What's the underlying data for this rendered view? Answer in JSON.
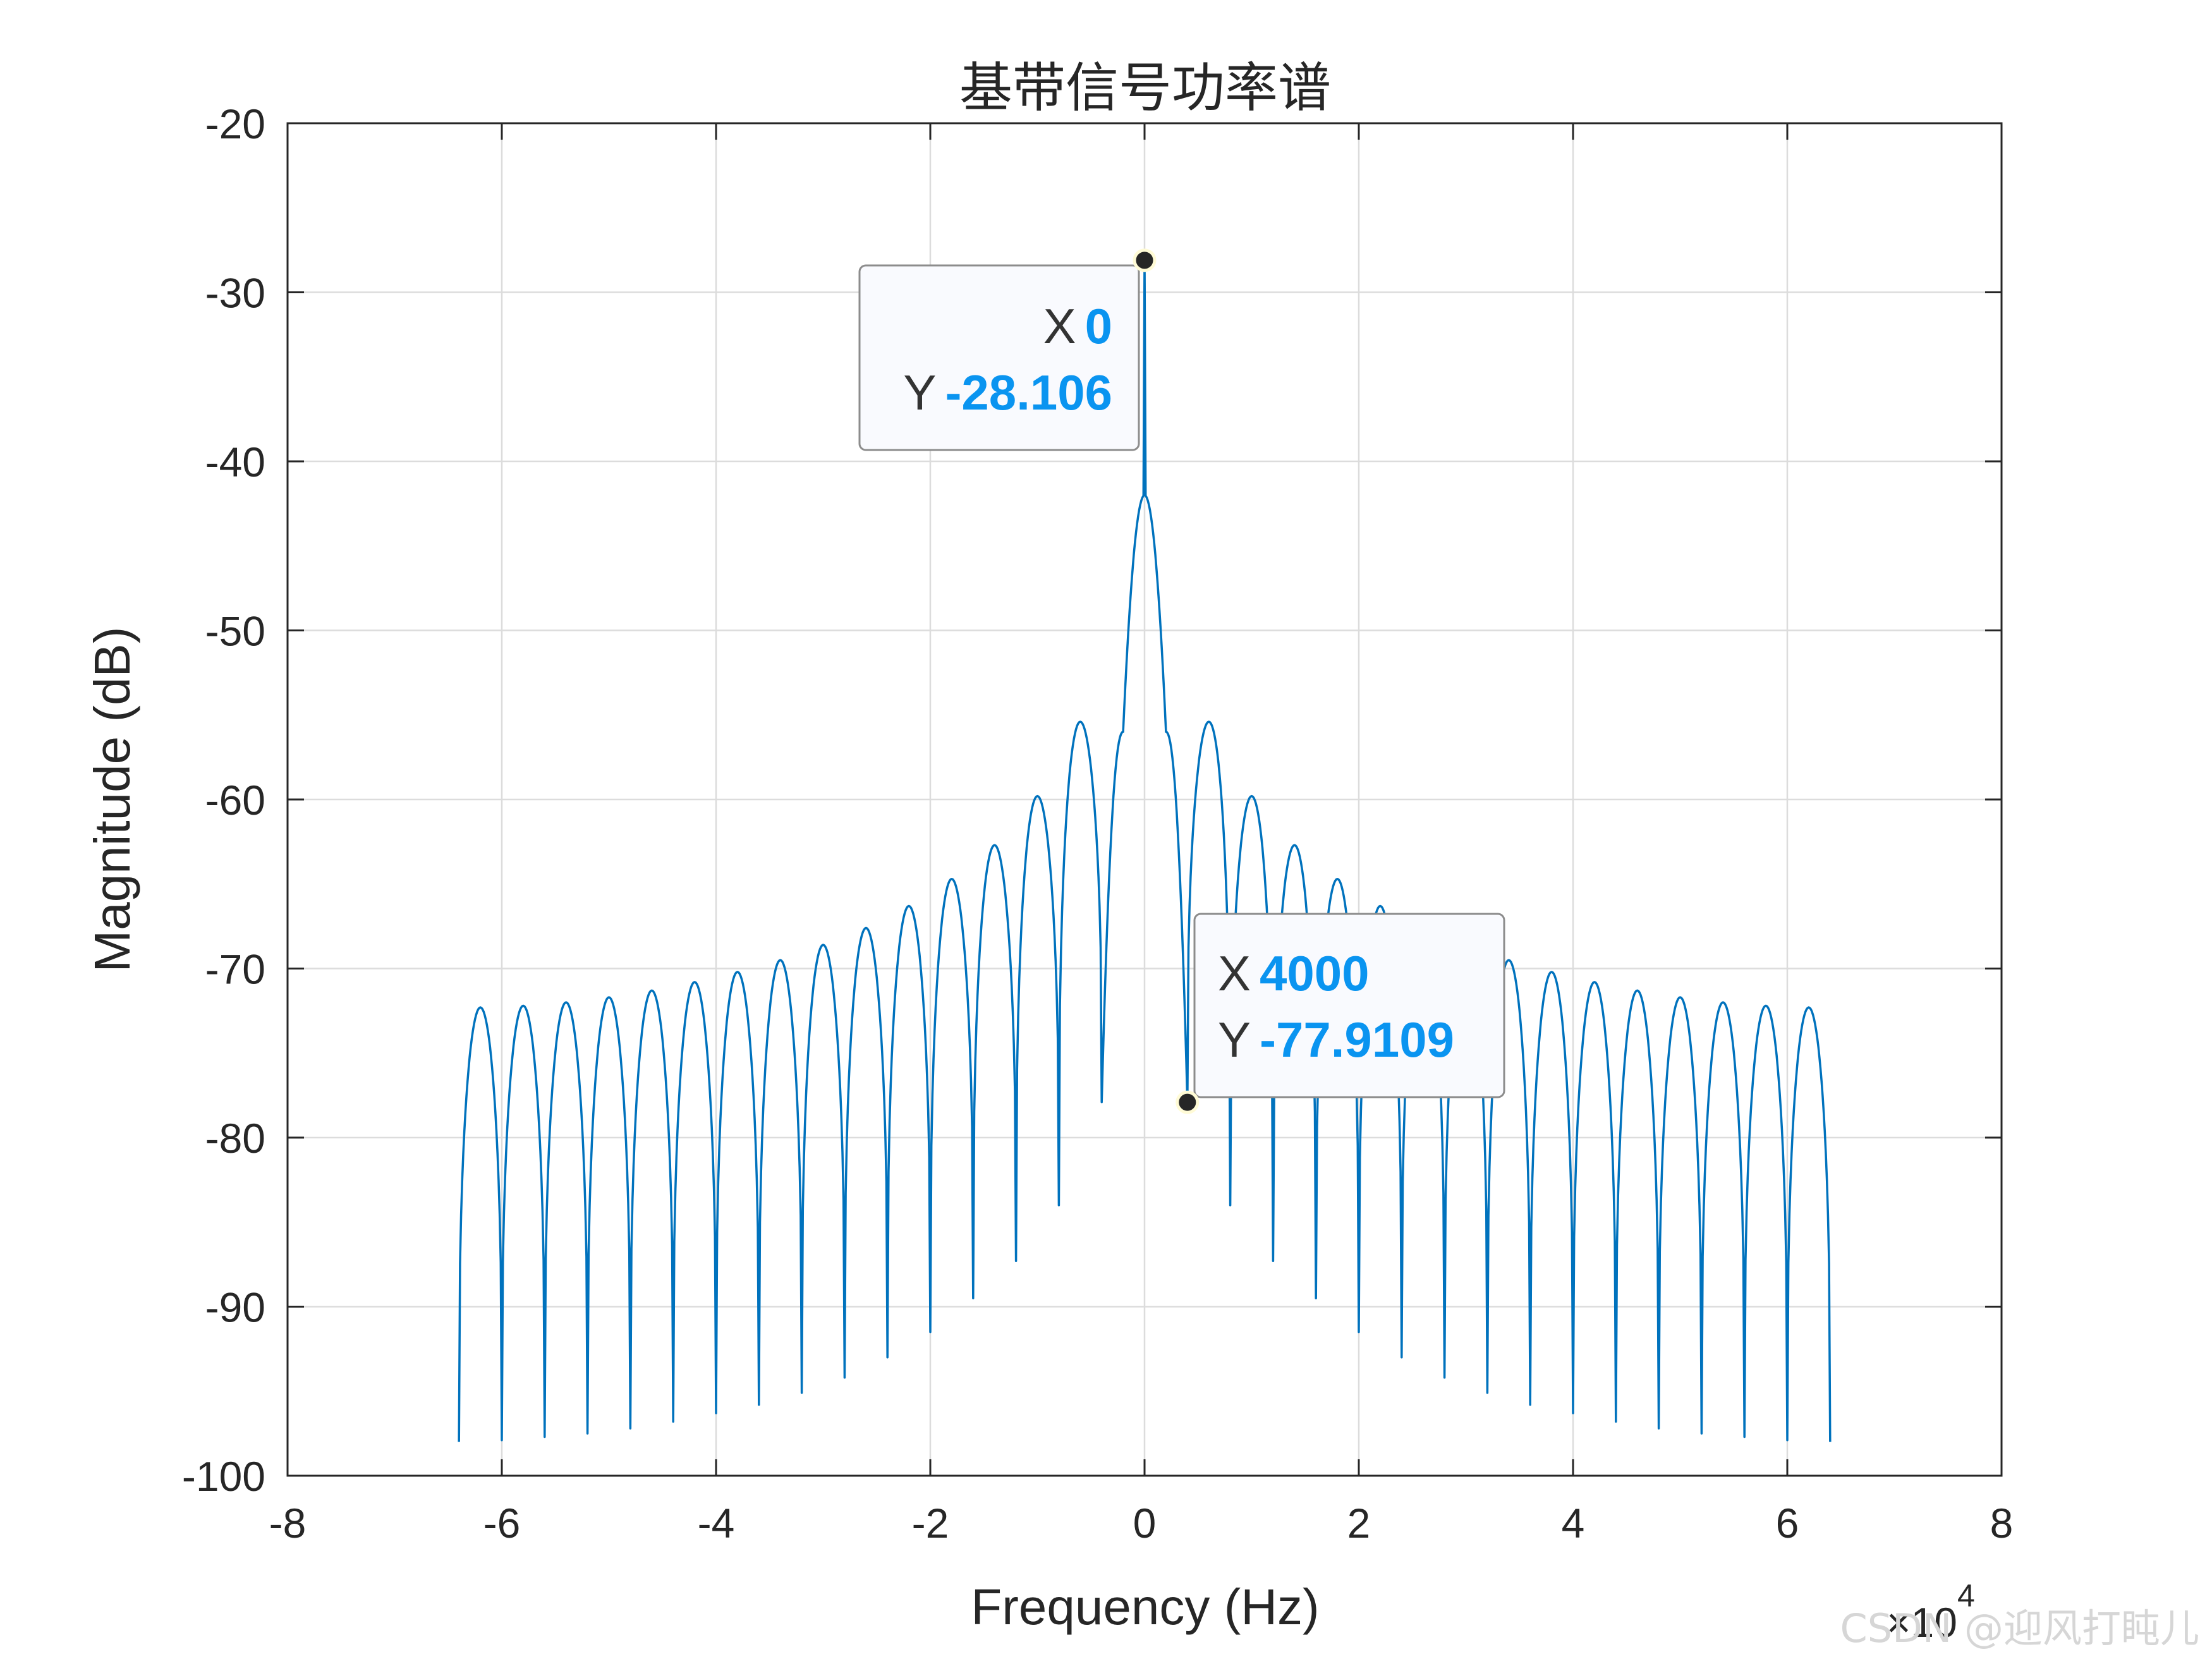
{
  "chart_data": {
    "type": "line",
    "title": "基带信号功率谱",
    "xlabel": "Frequency (Hz)",
    "ylabel": "Magnitude (dB)",
    "x_multiplier_label": "×10",
    "x_multiplier_exponent": "4",
    "xlim": [
      -80000,
      80000
    ],
    "ylim": [
      -100,
      -20
    ],
    "x_tick_values": [
      -80000,
      -60000,
      -40000,
      -20000,
      0,
      20000,
      40000,
      60000,
      80000
    ],
    "x_tick_labels": [
      "-8",
      "-6",
      "-4",
      "-2",
      "0",
      "2",
      "4",
      "6",
      "8"
    ],
    "y_tick_values": [
      -20,
      -30,
      -40,
      -50,
      -60,
      -70,
      -80,
      -90,
      -100
    ],
    "y_tick_labels": [
      "-20",
      "-30",
      "-40",
      "-50",
      "-60",
      "-70",
      "-80",
      "-90",
      "-100"
    ],
    "grid": true,
    "line_color": "#0072bd",
    "series": [
      {
        "x_range": [
          -64000,
          64000
        ],
        "lobe_width": 4000,
        "dc_spike": -28.106,
        "lobe_peaks": [
          -42,
          -55.4,
          -59.8,
          -62.7,
          -64.7,
          -66.3,
          -67.6,
          -68.6,
          -69.5,
          -70.2,
          -70.8,
          -71.3,
          -71.7,
          -72.0,
          -72.2,
          -72.3
        ],
        "null_depths": [
          -77.9,
          -84,
          -87.3,
          -89.5,
          -91.5,
          -93,
          -94.2,
          -95.1,
          -95.8,
          -96.3,
          -96.8,
          -97.2,
          -97.5,
          -97.7,
          -97.9,
          -98
        ]
      }
    ],
    "annotations": [
      {
        "x_key": "X",
        "x_value": "0",
        "y_key": "Y",
        "y_value": "-28.106",
        "point": [
          0,
          -28.106
        ]
      },
      {
        "x_key": "X",
        "x_value": "4000",
        "y_key": "Y",
        "y_value": "-77.9109",
        "point": [
          4000,
          -77.9109
        ]
      }
    ]
  },
  "watermark": "CSDN @迎风打盹儿"
}
